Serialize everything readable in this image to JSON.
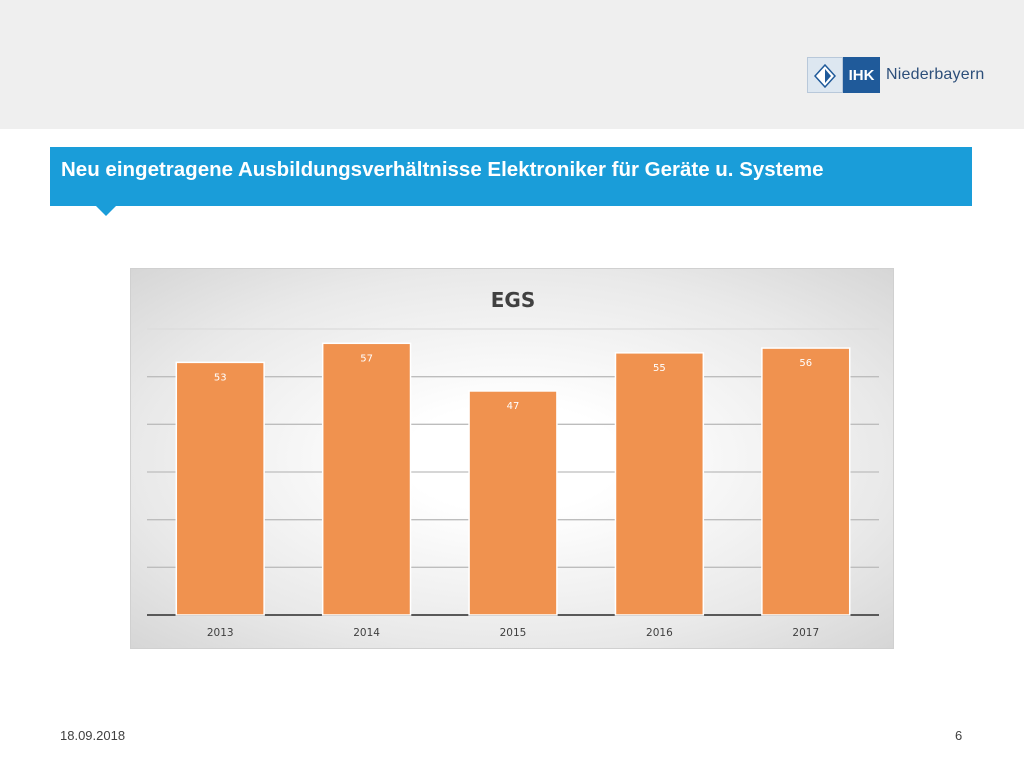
{
  "header": {
    "logo_short": "IHK",
    "logo_name": "Niederbayern",
    "title": "Neu eingetragene Ausbildungsverhältnisse Elektroniker für Geräte u. Systeme"
  },
  "footer": {
    "date": "18.09.2018",
    "page_number": "6"
  },
  "colors": {
    "title_bar": "#1a9dd9",
    "bar": "#f0924f",
    "logo_blue": "#1f5a9a"
  },
  "chart_data": {
    "type": "bar",
    "title": "EGS",
    "categories": [
      "2013",
      "2014",
      "2015",
      "2016",
      "2017"
    ],
    "values": [
      53,
      57,
      47,
      55,
      56
    ],
    "ylim": [
      0,
      60
    ],
    "grid": true,
    "show_y_axis_labels": false
  }
}
